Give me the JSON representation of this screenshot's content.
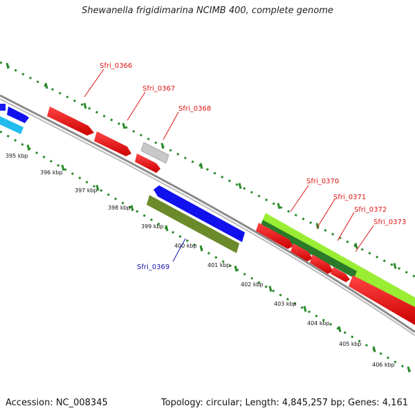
{
  "title": "Shewanella frigidimarina NCIMB 400, complete genome",
  "footer": {
    "accession": "Accession: NC_008345",
    "summary": "Topology: circular; Length: 4,845,257 bp; Genes: 4,161"
  },
  "colors": {
    "forward_red": "#ee1111",
    "reverse_blue": "#1111ee",
    "cyan": "#22bbee",
    "grey": "#c8c8c8",
    "olive": "#6b8a2a",
    "light_green": "#99ee33",
    "dark_green": "#2a7a2a",
    "dotted_green": "#2a8a2a",
    "backbone": "#888888",
    "label_red": "#dd1111",
    "label_blue": "#1111aa"
  },
  "ticks": [
    {
      "label": "395 kbp"
    },
    {
      "label": "396 kbp"
    },
    {
      "label": "397 kbp"
    },
    {
      "label": "398 kbp"
    },
    {
      "label": "399 kbp"
    },
    {
      "label": "400 kbp"
    },
    {
      "label": "401 kbp"
    },
    {
      "label": "402 kbp"
    },
    {
      "label": "403 kbp"
    },
    {
      "label": "404 kbp"
    },
    {
      "label": "405 kbp"
    },
    {
      "label": "406 kbp"
    }
  ],
  "gene_labels": [
    {
      "text": "Sfri_0366",
      "strand": "forward"
    },
    {
      "text": "Sfri_0367",
      "strand": "forward"
    },
    {
      "text": "Sfri_0368",
      "strand": "forward"
    },
    {
      "text": "Sfri_0369",
      "strand": "reverse"
    },
    {
      "text": "Sfri_0370",
      "strand": "forward"
    },
    {
      "text": "Sfri_0371",
      "strand": "forward"
    },
    {
      "text": "Sfri_0372",
      "strand": "forward"
    },
    {
      "text": "Sfri_0373",
      "strand": "forward"
    }
  ]
}
